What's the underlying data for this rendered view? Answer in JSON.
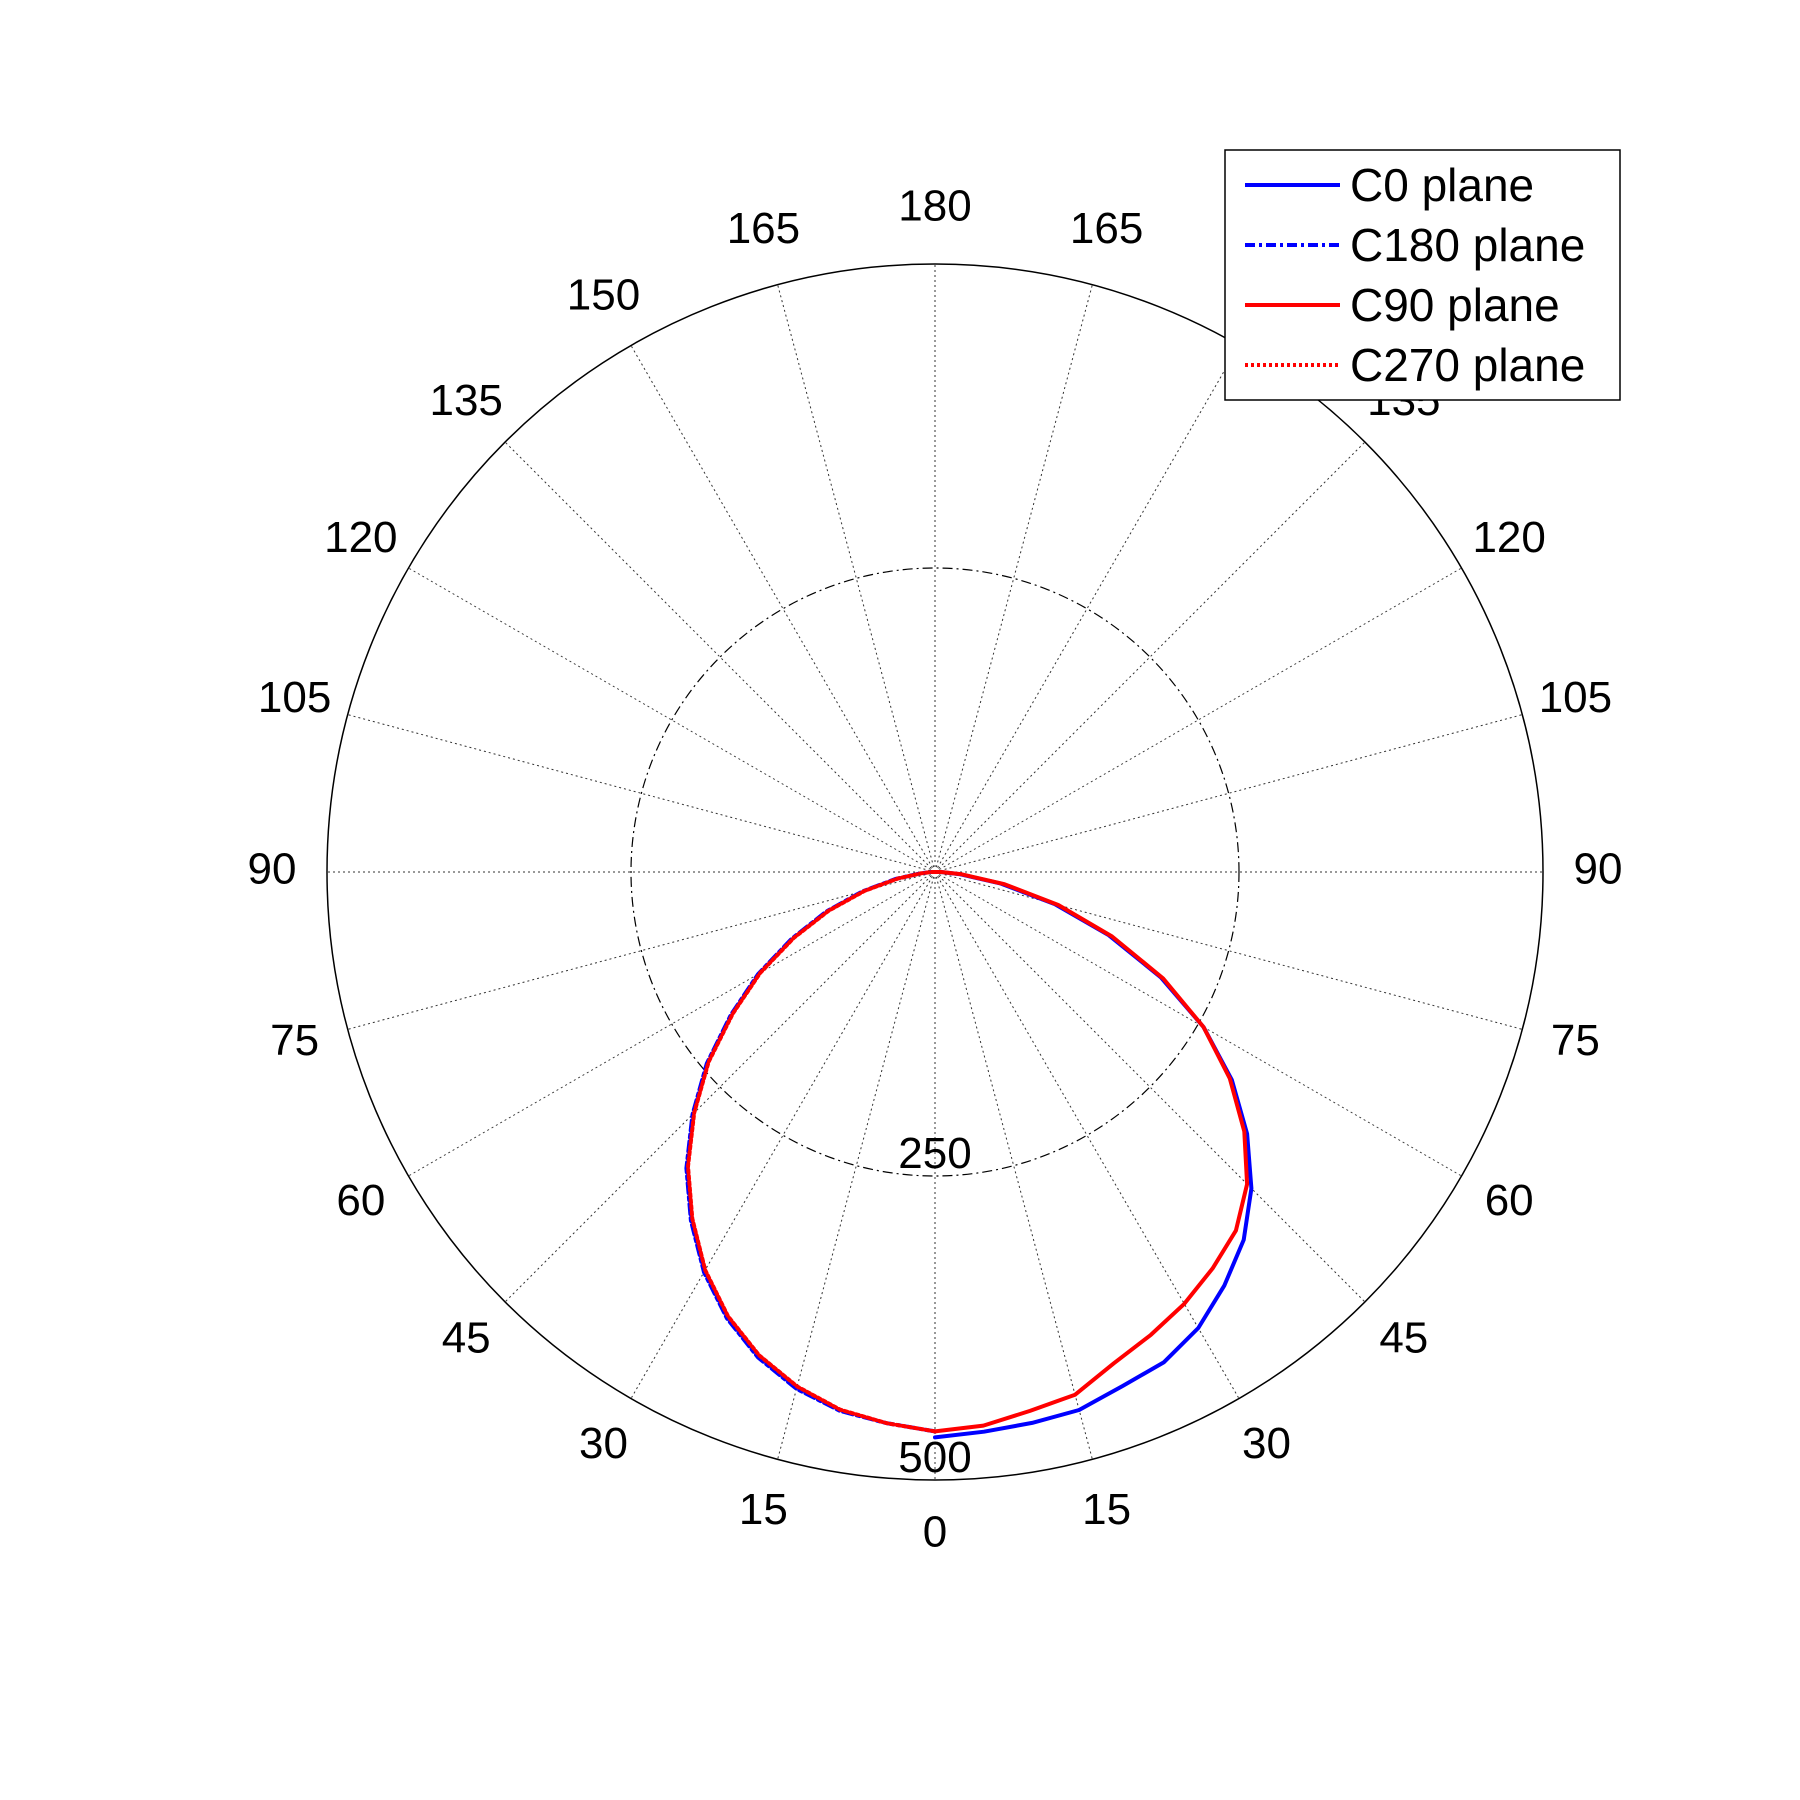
{
  "chart_data": {
    "type": "polar",
    "angular_unit": "degrees",
    "zero_direction": "bottom",
    "angle_tick_labels_right": [
      "0",
      "15",
      "30",
      "45",
      "60",
      "75",
      "90",
      "105",
      "120",
      "135",
      "150",
      "165",
      "180"
    ],
    "angle_tick_labels_left": [
      "15",
      "30",
      "45",
      "60",
      "75",
      "90",
      "105",
      "120",
      "135",
      "150",
      "165"
    ],
    "rlim": [
      0,
      500
    ],
    "radial_ticks": [
      250,
      500
    ],
    "radial_tick_labels": [
      "250",
      "500"
    ],
    "grid": true,
    "legend_position": "top-right",
    "legend_labels": [
      "C0 plane",
      "C180 plane",
      "C90 plane",
      "C270 plane"
    ],
    "series": [
      {
        "name": "C0 plane",
        "side": "right",
        "color": "#0000ff",
        "line_style": "solid",
        "angles": [
          0,
          5,
          10,
          15,
          20,
          25,
          30,
          35,
          40,
          45,
          50,
          55,
          60,
          65,
          70,
          75,
          80,
          85,
          90
        ],
        "values": [
          465,
          462,
          460,
          458,
          450,
          445,
          433,
          415,
          395,
          368,
          335,
          298,
          255,
          205,
          152,
          102,
          55,
          20,
          5
        ]
      },
      {
        "name": "C180 plane",
        "side": "left",
        "color": "#0000ff",
        "line_style": "dashdot",
        "angles": [
          0,
          5,
          10,
          15,
          20,
          25,
          30,
          35,
          40,
          45,
          50,
          55,
          60,
          65,
          70,
          75,
          80,
          85,
          90
        ],
        "values": [
          460,
          455,
          450,
          440,
          425,
          405,
          380,
          350,
          318,
          282,
          245,
          205,
          168,
          130,
          95,
          62,
          33,
          12,
          3
        ]
      },
      {
        "name": "C90 plane",
        "side": "right",
        "color": "#ff0000",
        "line_style": "solid",
        "angles": [
          0,
          5,
          10,
          15,
          20,
          25,
          30,
          35,
          40,
          45,
          50,
          55,
          60,
          65,
          70,
          75,
          80,
          85,
          90
        ],
        "values": [
          460,
          457,
          450,
          445,
          430,
          420,
          410,
          398,
          385,
          363,
          332,
          296,
          255,
          207,
          155,
          105,
          58,
          22,
          5
        ]
      },
      {
        "name": "C270 plane",
        "side": "left",
        "color": "#ff0000",
        "line_style": "dotted",
        "angles": [
          0,
          5,
          10,
          15,
          20,
          25,
          30,
          35,
          40,
          45,
          50,
          55,
          60,
          65,
          70,
          75,
          80,
          85,
          90
        ],
        "values": [
          460,
          455,
          449,
          438,
          423,
          403,
          378,
          348,
          316,
          280,
          243,
          203,
          166,
          128,
          93,
          60,
          31,
          11,
          3
        ]
      }
    ]
  }
}
